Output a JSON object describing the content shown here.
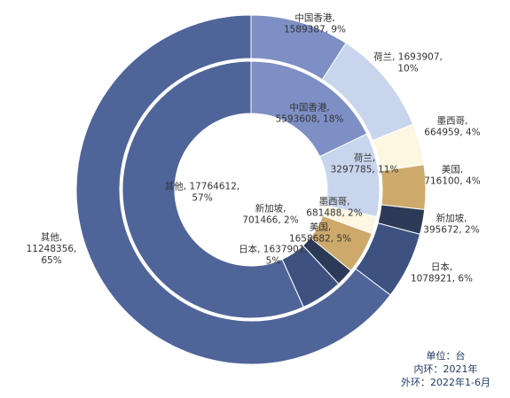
{
  "chart_data": {
    "type": "pie",
    "variant": "double-donut",
    "title": "",
    "rings": [
      {
        "ring": "inner",
        "period": "2021年",
        "slices": [
          {
            "name": "中国香港",
            "value": 5593608,
            "pct": "18%",
            "color": "#7d8fc4",
            "label_lines": [
              "中国香港,",
              "5593608, 18%"
            ]
          },
          {
            "name": "荷兰",
            "value": 3297785,
            "pct": "11%",
            "color": "#c9d5ed",
            "label_lines": [
              "荷兰,",
              "3297785, 11%"
            ]
          },
          {
            "name": "墨西哥",
            "value": 681488,
            "pct": "2%",
            "color": "#fdf6e0",
            "label_lines": [
              "墨西哥,",
              "681488, 2%"
            ]
          },
          {
            "name": "美国",
            "value": 1658682,
            "pct": "5%",
            "color": "#cda96b",
            "label_lines": [
              "美国,",
              "1658682, 5%"
            ]
          },
          {
            "name": "新加坡",
            "value": 701466,
            "pct": "2%",
            "color": "#2d3a57",
            "label_lines": [
              "新加坡,",
              "701466, 2%"
            ]
          },
          {
            "name": "日本",
            "value": 1637901,
            "pct": "5%",
            "color": "#3d5280",
            "label_lines": [
              "日本, 1637901,",
              "5%"
            ]
          },
          {
            "name": "其他",
            "value": 17764612,
            "pct": "57%",
            "color": "#4f6499",
            "label_lines": [
              "其他, 17764612,",
              "57%"
            ]
          }
        ]
      },
      {
        "ring": "outer",
        "period": "2022年1-6月",
        "slices": [
          {
            "name": "中国香港",
            "value": 1589387,
            "pct": "9%",
            "color": "#7d8fc4",
            "label_lines": [
              "中国香港,",
              "1589387, 9%"
            ]
          },
          {
            "name": "荷兰",
            "value": 1693907,
            "pct": "10%",
            "color": "#c9d5ed",
            "label_lines": [
              "荷兰, 1693907,",
              "10%"
            ]
          },
          {
            "name": "墨西哥",
            "value": 664959,
            "pct": "4%",
            "color": "#fdf6e0",
            "label_lines": [
              "墨西哥,",
              "664959, 4%"
            ]
          },
          {
            "name": "美国",
            "value": 716100,
            "pct": "4%",
            "color": "#cda96b",
            "label_lines": [
              "美国,",
              "716100, 4%"
            ]
          },
          {
            "name": "新加坡",
            "value": 395672,
            "pct": "2%",
            "color": "#2d3a57",
            "label_lines": [
              "新加坡,",
              "395672, 2%"
            ]
          },
          {
            "name": "日本",
            "value": 1078921,
            "pct": "6%",
            "color": "#3d5280",
            "label_lines": [
              "日本,",
              "1078921, 6%"
            ]
          },
          {
            "name": "其他",
            "value": 11248356,
            "pct": "65%",
            "color": "#4f6499",
            "label_lines": [
              "其他,",
              "11248356,",
              "65%"
            ]
          }
        ]
      }
    ]
  },
  "note": {
    "unit": "单位：台",
    "inner": "内环：2021年",
    "outer": "外环：2022年1-6月"
  }
}
